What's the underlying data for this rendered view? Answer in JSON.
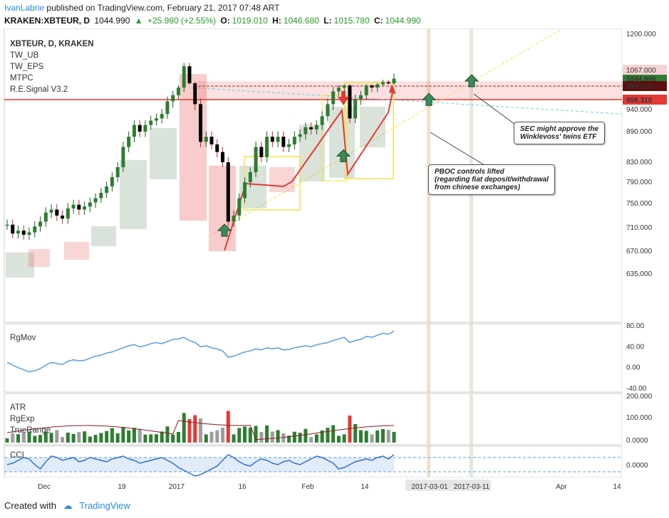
{
  "header": {
    "author": "IvanLabrie",
    "published": "published on TradingView.com, February 21, 2017 07:48 ART",
    "symbol": "KRAKEN:XBTEUR, D",
    "last": "1044.990",
    "change": "+25.980 (+2.55%)",
    "open_label": "O:",
    "open": "1019.010",
    "high_label": "H:",
    "high": "1046.680",
    "low_label": "L:",
    "low": "1015.780",
    "close_label": "C:",
    "close": "1044.990"
  },
  "legend": {
    "title": "XBTEUR, D, KRAKEN",
    "indicators": [
      "TW_UB",
      "TW_EPS",
      "MTPC",
      "R.E.Signal V3.2"
    ]
  },
  "panes": {
    "rgmov": "RgMov",
    "atr": [
      "ATR",
      "RgExp",
      "TrueRange"
    ],
    "cci": "CCI"
  },
  "annotations": {
    "sec": [
      "SEC might approve the",
      "Winklevoss' twins ETF"
    ],
    "pboc": [
      "PBOC controls lifted",
      "(regarding fiat deposit/withdrawal",
      "from chinese exchanges)"
    ]
  },
  "footer": {
    "created_with": "Created with",
    "brand": "TradingView"
  },
  "colors": {
    "up": "#2e7d32",
    "down": "#e53935",
    "accent": "#2a8ae0",
    "price_tag": "#2e7d32"
  },
  "chart_data": {
    "type": "candlestick",
    "symbol": "KRAKEN:XBTEUR",
    "timeframe": "D",
    "price_ticks": [
      1200,
      1067,
      1039,
      994.01,
      958.31,
      940,
      890,
      830,
      790,
      750,
      710,
      670,
      635
    ],
    "price_ticks_labels": [
      "1200.000",
      "1067.000",
      "1039.000",
      "994.010",
      "958.310",
      "940.000",
      "890.000",
      "830.000",
      "790.000",
      "750.000",
      "710.000",
      "670.000",
      "635.000"
    ],
    "highlight_tags": [
      {
        "label": "1044.990",
        "value": 1044.99,
        "color": "#2e7d32"
      },
      {
        "label": "994.010",
        "value": 994.01,
        "color": "#5d1010"
      },
      {
        "label": "958.310",
        "value": 958.31,
        "color": "#e53935"
      }
    ],
    "x_ticks": [
      "Dec",
      "19",
      "2017",
      "16",
      "Feb",
      "14",
      "2017-03-01",
      "2017-03-11",
      "Apr",
      "14"
    ],
    "closes": [
      715,
      700,
      705,
      698,
      702,
      712,
      720,
      735,
      740,
      730,
      725,
      742,
      748,
      740,
      745,
      752,
      760,
      770,
      782,
      800,
      820,
      860,
      880,
      905,
      890,
      905,
      915,
      920,
      930,
      955,
      970,
      990,
      1080,
      1020,
      950,
      870,
      880,
      865,
      850,
      830,
      720,
      730,
      760,
      790,
      810,
      860,
      840,
      880,
      870,
      880,
      860,
      865,
      880,
      885,
      900,
      895,
      905,
      925,
      950,
      980,
      990,
      1000,
      920,
      960,
      970,
      1000,
      990,
      1010,
      1030,
      1019,
      1044.99
    ],
    "rgmov": {
      "ylim": [
        -40,
        80
      ],
      "ticks": [
        "80.00",
        "40.00",
        "0.00",
        "-40.00"
      ]
    },
    "atr": {
      "ticks": [
        "200.000",
        "100.000",
        "0.0000"
      ]
    },
    "cci": {
      "ticks": [
        "0.0000"
      ]
    }
  }
}
